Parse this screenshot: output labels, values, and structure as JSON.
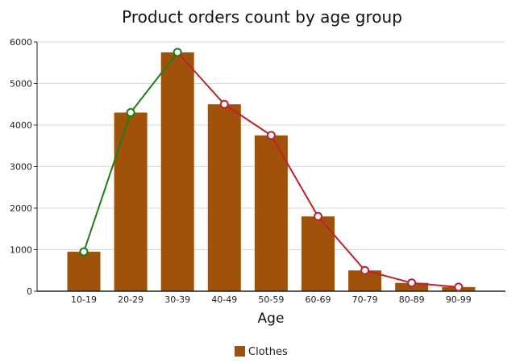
{
  "chart_data": {
    "type": "bar",
    "title": "Product orders count by age group",
    "xlabel": "Age",
    "ylabel": "",
    "categories": [
      "10-19",
      "20-29",
      "30-39",
      "40-49",
      "50-59",
      "60-69",
      "70-79",
      "80-89",
      "90-99"
    ],
    "series": [
      {
        "name": "Clothes",
        "type": "bar",
        "values": [
          950,
          4300,
          5750,
          4500,
          3750,
          1800,
          500,
          200,
          100
        ],
        "color": "#A0520A"
      }
    ],
    "trend_line": {
      "type": "line",
      "values": [
        950,
        4300,
        5750,
        4500,
        3750,
        1800,
        500,
        200,
        100
      ],
      "rising_color": "#1E7D12",
      "falling_color": "#C0202C",
      "marker_fill": "#ffffff"
    },
    "ylim": [
      0,
      6000
    ],
    "yticks": [
      0,
      1000,
      2000,
      3000,
      4000,
      5000,
      6000
    ],
    "grid": true,
    "legend_position": "bottom-center"
  }
}
